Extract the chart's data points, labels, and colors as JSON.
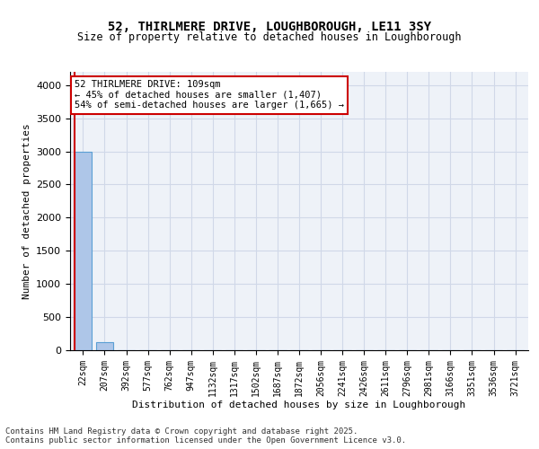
{
  "title_line1": "52, THIRLMERE DRIVE, LOUGHBOROUGH, LE11 3SY",
  "title_line2": "Size of property relative to detached houses in Loughborough",
  "xlabel": "Distribution of detached houses by size in Loughborough",
  "ylabel": "Number of detached properties",
  "categories": [
    "22sqm",
    "207sqm",
    "392sqm",
    "577sqm",
    "762sqm",
    "947sqm",
    "1132sqm",
    "1317sqm",
    "1502sqm",
    "1687sqm",
    "1872sqm",
    "2056sqm",
    "2241sqm",
    "2426sqm",
    "2611sqm",
    "2796sqm",
    "2981sqm",
    "3166sqm",
    "3351sqm",
    "3536sqm",
    "3721sqm"
  ],
  "values": [
    3000,
    120,
    0,
    0,
    0,
    0,
    0,
    0,
    0,
    0,
    0,
    0,
    0,
    0,
    0,
    0,
    0,
    0,
    0,
    0,
    0
  ],
  "bar_color": "#aec6e8",
  "bar_edge_color": "#5a9fd4",
  "property_line_x": 0,
  "property_size": "109sqm",
  "annotation_line1": "52 THIRLMERE DRIVE: 109sqm",
  "annotation_line2": "← 45% of detached houses are smaller (1,407)",
  "annotation_line3": "54% of semi-detached houses are larger (1,665) →",
  "annotation_box_color": "#ffffff",
  "annotation_box_edge_color": "#cc0000",
  "marker_line_color": "#cc0000",
  "grid_color": "#d0d8e8",
  "bg_color": "#eef2f8",
  "ylim": [
    0,
    4200
  ],
  "yticks": [
    0,
    500,
    1000,
    1500,
    2000,
    2500,
    3000,
    3500,
    4000
  ],
  "footer_line1": "Contains HM Land Registry data © Crown copyright and database right 2025.",
  "footer_line2": "Contains public sector information licensed under the Open Government Licence v3.0."
}
